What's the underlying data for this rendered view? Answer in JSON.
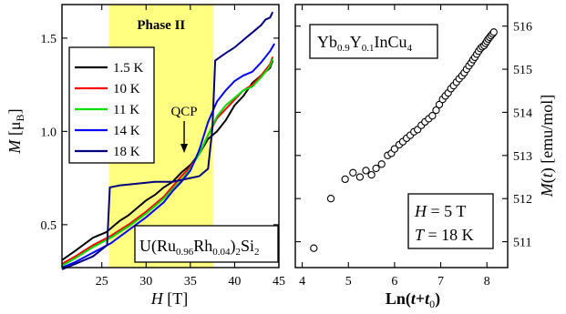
{
  "chart_data": [
    {
      "type": "line",
      "xlabel_var": "H",
      "xlabel_unit": " [T]",
      "ylabel_var": "M",
      "ylabel_unit": " [μ",
      "ylabel_sub": "B",
      "ylabel_close": "]",
      "xlim": [
        20.5,
        45
      ],
      "ylim": [
        0.27,
        1.68
      ],
      "xticks": [
        25,
        30,
        35,
        40,
        45
      ],
      "yticks": [
        0.5,
        1.0,
        1.5
      ],
      "ytick_labels": [
        "0.5",
        "1.0",
        "1.5"
      ],
      "shaded_region": {
        "x": [
          25.8,
          37.6
        ],
        "color": "#ffff80",
        "label": "Phase II"
      },
      "annotation": {
        "text": "QCP",
        "x": 34.3,
        "y": 0.93
      },
      "compound": {
        "pre": "U(Ru",
        "sub1": "0.96",
        "mid": "Rh",
        "sub2": "0.04",
        "post": ")",
        "sub3": "2",
        "tail": "Si",
        "sub4": "2"
      },
      "legend_placement": "upper-left",
      "series": [
        {
          "name": "1.5 K",
          "color": "#000000",
          "points": [
            [
              20.5,
              0.31
            ],
            [
              22,
              0.36
            ],
            [
              24,
              0.43
            ],
            [
              25.5,
              0.46
            ],
            [
              27,
              0.52
            ],
            [
              28,
              0.55
            ],
            [
              29,
              0.59
            ],
            [
              30,
              0.63
            ],
            [
              31,
              0.66
            ],
            [
              32,
              0.7
            ],
            [
              33,
              0.73
            ],
            [
              34,
              0.78
            ],
            [
              35,
              0.82
            ],
            [
              36,
              0.88
            ],
            [
              37,
              0.96
            ],
            [
              38,
              1.0
            ],
            [
              39,
              1.06
            ],
            [
              40,
              1.14
            ],
            [
              41,
              1.19
            ],
            [
              42,
              1.26
            ],
            [
              43,
              1.3
            ],
            [
              44,
              1.34
            ],
            [
              44.3,
              1.38
            ]
          ]
        },
        {
          "name": "10 K",
          "color": "#ff0000",
          "points": [
            [
              20.5,
              0.29
            ],
            [
              22,
              0.33
            ],
            [
              24,
              0.39
            ],
            [
              26,
              0.44
            ],
            [
              28,
              0.5
            ],
            [
              30,
              0.57
            ],
            [
              32,
              0.65
            ],
            [
              34,
              0.76
            ],
            [
              35,
              0.81
            ],
            [
              36,
              0.88
            ],
            [
              37,
              0.98
            ],
            [
              38,
              1.07
            ],
            [
              39,
              1.12
            ],
            [
              40,
              1.17
            ],
            [
              41,
              1.22
            ],
            [
              42,
              1.25
            ],
            [
              43,
              1.3
            ],
            [
              44,
              1.36
            ],
            [
              44.3,
              1.4
            ]
          ]
        },
        {
          "name": "11 K",
          "color": "#00dd00",
          "points": [
            [
              20.5,
              0.28
            ],
            [
              22,
              0.32
            ],
            [
              24,
              0.38
            ],
            [
              26,
              0.43
            ],
            [
              28,
              0.49
            ],
            [
              30,
              0.56
            ],
            [
              32,
              0.64
            ],
            [
              34,
              0.74
            ],
            [
              35,
              0.8
            ],
            [
              36,
              0.88
            ],
            [
              37,
              0.98
            ],
            [
              38,
              1.08
            ],
            [
              39,
              1.14
            ],
            [
              40,
              1.18
            ],
            [
              41,
              1.22
            ],
            [
              42,
              1.24
            ],
            [
              43,
              1.29
            ],
            [
              44,
              1.35
            ],
            [
              44.3,
              1.39
            ]
          ]
        },
        {
          "name": "14 K",
          "color": "#0000ff",
          "points": [
            [
              20.5,
              0.27
            ],
            [
              22,
              0.3
            ],
            [
              24,
              0.35
            ],
            [
              26,
              0.4
            ],
            [
              28,
              0.47
            ],
            [
              30,
              0.54
            ],
            [
              32,
              0.62
            ],
            [
              33,
              0.68
            ],
            [
              34,
              0.73
            ],
            [
              35,
              0.79
            ],
            [
              36,
              0.9
            ],
            [
              37,
              1.05
            ],
            [
              38,
              1.16
            ],
            [
              39,
              1.22
            ],
            [
              40,
              1.27
            ],
            [
              41,
              1.3
            ],
            [
              42,
              1.32
            ],
            [
              43,
              1.37
            ],
            [
              44,
              1.43
            ],
            [
              44.5,
              1.47
            ]
          ]
        },
        {
          "name": "18 K",
          "color": "#000080",
          "points": [
            [
              20.5,
              0.26
            ],
            [
              22,
              0.29
            ],
            [
              24,
              0.33
            ],
            [
              25.6,
              0.39
            ],
            [
              25.9,
              0.7
            ],
            [
              27,
              0.71
            ],
            [
              29,
              0.72
            ],
            [
              31,
              0.73
            ],
            [
              33,
              0.73
            ],
            [
              34,
              0.74
            ],
            [
              35,
              0.75
            ],
            [
              36,
              0.76
            ],
            [
              37,
              0.8
            ],
            [
              37.5,
              1.02
            ],
            [
              37.8,
              1.38
            ],
            [
              39,
              1.42
            ],
            [
              40,
              1.45
            ],
            [
              41,
              1.49
            ],
            [
              42,
              1.53
            ],
            [
              43,
              1.57
            ],
            [
              43.5,
              1.6
            ],
            [
              44,
              1.61
            ],
            [
              44.3,
              1.64
            ]
          ]
        }
      ]
    },
    {
      "type": "scatter",
      "xlabel_pre": "Ln(",
      "xlabel_var": "t",
      "xlabel_mid": "+",
      "xlabel_var2": "t",
      "xlabel_sub": "0",
      "xlabel_close": ")",
      "ylabel_var": "M",
      "ylabel_mid": "(",
      "ylabel_var2": "t",
      "ylabel_unit": ") [emu/mol]",
      "xlim": [
        3.85,
        8.45
      ],
      "ylim": [
        510.4,
        516.5
      ],
      "xticks": [
        4,
        5,
        6,
        7,
        8
      ],
      "yticks": [
        511,
        512,
        513,
        514,
        515,
        516
      ],
      "compound": {
        "pre": "Yb",
        "sub1": "0.9",
        "mid": "Y",
        "sub2": "0.1",
        "tail": "InCu",
        "sub3": "4"
      },
      "params": [
        {
          "var": "H",
          "rest": " = 5 T"
        },
        {
          "var": "T",
          "rest": " = 18 K"
        }
      ],
      "points": [
        [
          4.25,
          510.85
        ],
        [
          4.62,
          512.0
        ],
        [
          4.93,
          512.45
        ],
        [
          5.1,
          512.6
        ],
        [
          5.25,
          512.5
        ],
        [
          5.38,
          512.65
        ],
        [
          5.5,
          512.55
        ],
        [
          5.6,
          512.7
        ],
        [
          5.72,
          512.8
        ],
        [
          5.85,
          513.0
        ],
        [
          5.93,
          513.05
        ],
        [
          6.0,
          513.15
        ],
        [
          6.1,
          513.25
        ],
        [
          6.18,
          513.32
        ],
        [
          6.26,
          513.4
        ],
        [
          6.34,
          513.47
        ],
        [
          6.42,
          513.55
        ],
        [
          6.5,
          513.6
        ],
        [
          6.58,
          513.7
        ],
        [
          6.66,
          513.78
        ],
        [
          6.74,
          513.85
        ],
        [
          6.82,
          513.92
        ],
        [
          6.9,
          514.05
        ],
        [
          6.97,
          514.18
        ],
        [
          7.04,
          514.3
        ],
        [
          7.1,
          514.38
        ],
        [
          7.16,
          514.45
        ],
        [
          7.22,
          514.55
        ],
        [
          7.28,
          514.62
        ],
        [
          7.34,
          514.7
        ],
        [
          7.4,
          514.78
        ],
        [
          7.46,
          514.85
        ],
        [
          7.51,
          514.92
        ],
        [
          7.56,
          515.0
        ],
        [
          7.61,
          515.08
        ],
        [
          7.66,
          515.15
        ],
        [
          7.7,
          515.22
        ],
        [
          7.74,
          515.28
        ],
        [
          7.78,
          515.35
        ],
        [
          7.82,
          515.42
        ],
        [
          7.86,
          515.48
        ],
        [
          7.9,
          515.52
        ],
        [
          7.94,
          515.55
        ],
        [
          7.97,
          515.6
        ],
        [
          8.0,
          515.65
        ],
        [
          8.03,
          515.7
        ],
        [
          8.06,
          515.74
        ],
        [
          8.09,
          515.78
        ],
        [
          8.12,
          515.82
        ],
        [
          8.15,
          515.86
        ]
      ]
    }
  ]
}
